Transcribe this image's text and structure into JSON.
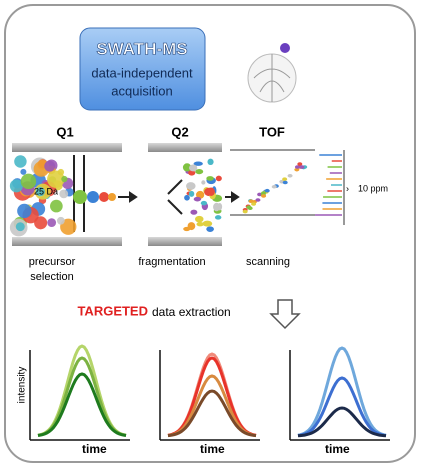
{
  "header": {
    "title": "SWATH-MS",
    "lines": [
      "data-independent",
      "acquisition"
    ]
  },
  "stages": [
    {
      "label": "Q1",
      "caption": [
        "precursor",
        "selection"
      ]
    },
    {
      "label": "Q2",
      "caption": [
        "fragmentation"
      ]
    },
    {
      "label": "TOF",
      "caption": [
        "scanning"
      ]
    }
  ],
  "window_label": "25 Da",
  "accuracy_label": "10 ppm",
  "extraction": {
    "emphasis": "TARGETED",
    "text": "data extraction"
  },
  "plots": {
    "y_label": "intensity",
    "x_labels": [
      "time",
      "time",
      "time"
    ]
  }
}
